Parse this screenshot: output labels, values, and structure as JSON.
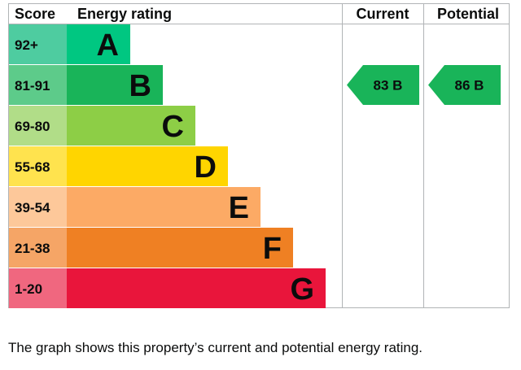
{
  "chart_data": {
    "type": "bar",
    "headers": {
      "score": "Score",
      "rating": "Energy rating",
      "current": "Current",
      "potential": "Potential"
    },
    "bands": [
      {
        "letter": "A",
        "range": "92+",
        "color": "#00c781",
        "score_color": "#4ecca0"
      },
      {
        "letter": "B",
        "range": "81-91",
        "color": "#19b459",
        "score_color": "#5dcb8a"
      },
      {
        "letter": "C",
        "range": "69-80",
        "color": "#8dce46",
        "score_color": "#b1dd88"
      },
      {
        "letter": "D",
        "range": "55-68",
        "color": "#ffd500",
        "score_color": "#ffe34e"
      },
      {
        "letter": "E",
        "range": "39-54",
        "color": "#fcaa65",
        "score_color": "#fdc89a"
      },
      {
        "letter": "F",
        "range": "21-38",
        "color": "#ef8023",
        "score_color": "#f5a566"
      },
      {
        "letter": "G",
        "range": "1-20",
        "color": "#e9153b",
        "score_color": "#f0677f"
      }
    ],
    "current": {
      "value": 83,
      "band": "B",
      "color": "#19b459"
    },
    "potential": {
      "value": 86,
      "band": "B",
      "color": "#19b459"
    }
  },
  "caption": "The graph shows this property’s current and potential energy rating."
}
